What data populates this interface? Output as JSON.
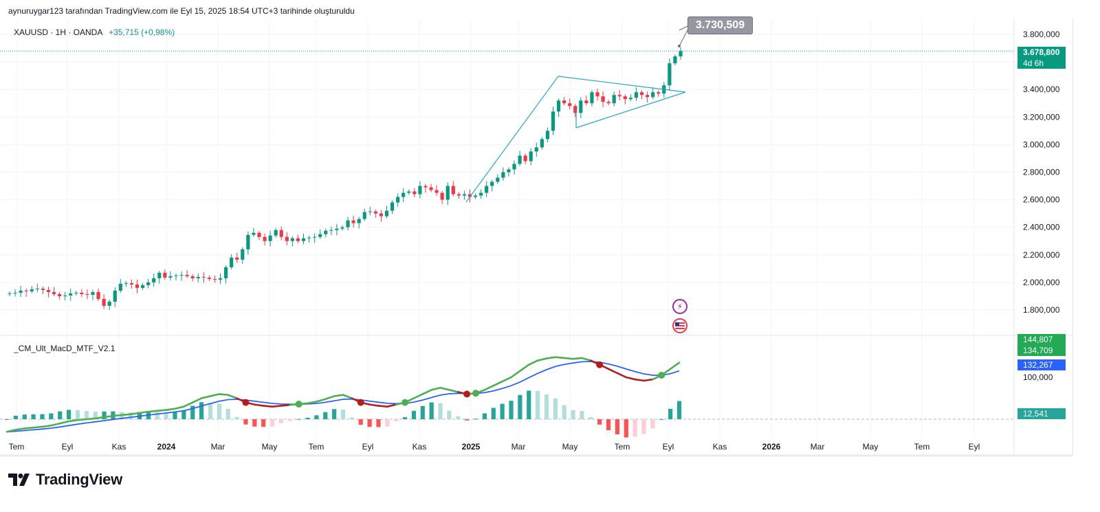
{
  "header": {
    "text": "aynuruygar123 tarafından TradingView.com ile Eyl 15, 2025 18:54 UTC+3 tarihinde oluşturuldu"
  },
  "symbol": {
    "name": "XAUUSD · 1H · OANDA",
    "change": "+35,715 (+0,98%)"
  },
  "indicator": {
    "name": "_CM_Ult_MacD_MTF_V2.1"
  },
  "callout": {
    "label": "3.730,509"
  },
  "price_axis": {
    "labels": [
      "3.800,000",
      "3.400,000",
      "3.200,000",
      "3.000,000",
      "2.800,000",
      "2.600,000",
      "2.400,000",
      "2.200,000",
      "2.000,000",
      "1.800,000"
    ],
    "last_price": "3.678,800",
    "countdown": "4d 6h"
  },
  "indicator_axis": {
    "label_100k": "100,000",
    "tags": {
      "macd_high": "144,807",
      "macd": "134,709",
      "signal": "132,267",
      "hist": "12,541"
    }
  },
  "time_axis": {
    "labels": [
      {
        "text": "Tem",
        "bold": false
      },
      {
        "text": "Eyl",
        "bold": false
      },
      {
        "text": "Kas",
        "bold": false
      },
      {
        "text": "2024",
        "bold": true
      },
      {
        "text": "Mar",
        "bold": false
      },
      {
        "text": "May",
        "bold": false
      },
      {
        "text": "Tem",
        "bold": false
      },
      {
        "text": "Eyl",
        "bold": false
      },
      {
        "text": "Kas",
        "bold": false
      },
      {
        "text": "2025",
        "bold": true
      },
      {
        "text": "Mar",
        "bold": false
      },
      {
        "text": "May",
        "bold": false
      },
      {
        "text": "Tem",
        "bold": false
      },
      {
        "text": "Eyl",
        "bold": false
      },
      {
        "text": "Kas",
        "bold": false
      },
      {
        "text": "2026",
        "bold": true
      },
      {
        "text": "Mar",
        "bold": false
      },
      {
        "text": "May",
        "bold": false
      },
      {
        "text": "Tem",
        "bold": false
      },
      {
        "text": "Eyl",
        "bold": false
      }
    ]
  },
  "footer": {
    "brand": "TradingView"
  },
  "colors": {
    "up": "#089981",
    "down": "#f23645",
    "macd_up": "#4caf50",
    "macd_down": "#b71c1c",
    "signal": "#2962ff",
    "pattern": "#22a6c9"
  },
  "icons": {
    "event1": "lightning-icon",
    "event2": "us-flag-icon"
  },
  "chart_data": {
    "type": "candlestick",
    "price_closes": [
      1920,
      1925,
      1940,
      1935,
      1950,
      1955,
      1945,
      1930,
      1915,
      1900,
      1905,
      1920,
      1925,
      1915,
      1910,
      1930,
      1880,
      1830,
      1860,
      1940,
      1990,
      1995,
      1985,
      1960,
      1980,
      2000,
      2030,
      2070,
      2035,
      2045,
      2050,
      2055,
      2045,
      2030,
      2040,
      2035,
      2025,
      2020,
      2030,
      2110,
      2180,
      2165,
      2240,
      2345,
      2360,
      2330,
      2300,
      2340,
      2380,
      2330,
      2300,
      2320,
      2300,
      2320,
      2325,
      2330,
      2350,
      2375,
      2380,
      2390,
      2400,
      2450,
      2430,
      2460,
      2510,
      2515,
      2500,
      2480,
      2520,
      2580,
      2620,
      2650,
      2660,
      2640,
      2700,
      2690,
      2670,
      2650,
      2600,
      2700,
      2640,
      2630,
      2640,
      2620,
      2630,
      2650,
      2700,
      2730,
      2760,
      2800,
      2820,
      2860,
      2920,
      2880,
      2950,
      2980,
      3040,
      3100,
      3240,
      3320,
      3300,
      3280,
      3230,
      3320,
      3300,
      3380,
      3350,
      3310,
      3300,
      3360,
      3350,
      3330,
      3340,
      3380,
      3360,
      3345,
      3380,
      3370,
      3430,
      3590,
      3640,
      3679
    ],
    "macd": [
      -30,
      -25,
      -22,
      -20,
      -18,
      -15,
      -10,
      -5,
      -2,
      0,
      2,
      5,
      8,
      10,
      12,
      15,
      18,
      20,
      22,
      25,
      30,
      40,
      50,
      55,
      60,
      58,
      50,
      40,
      35,
      32,
      30,
      32,
      34,
      36,
      38,
      42,
      48,
      55,
      58,
      50,
      40,
      35,
      32,
      30,
      35,
      40,
      50,
      60,
      70,
      75,
      70,
      65,
      60,
      62,
      70,
      80,
      90,
      100,
      115,
      130,
      140,
      145,
      148,
      146,
      144,
      146,
      140,
      130,
      120,
      110,
      100,
      95,
      92,
      95,
      105,
      120,
      135
    ]
  }
}
